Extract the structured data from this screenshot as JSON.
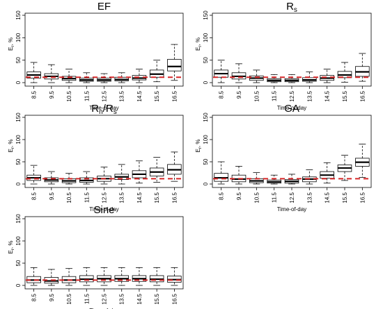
{
  "chart_data": [
    {
      "type": "box",
      "title": "EF",
      "xlabel": "Time-of-day",
      "ylabel": "E_r, %",
      "ylim": [
        0,
        150
      ],
      "yticks": [
        0,
        50,
        100,
        150
      ],
      "categories": [
        "8.5",
        "9.5",
        "10.5",
        "11.5",
        "12.5",
        "13.5",
        "14.5",
        "15.5",
        "16.5"
      ],
      "reference_line": 12,
      "boxes": [
        {
          "min": 0,
          "q1": 10,
          "median": 17,
          "q3": 24,
          "max": 45
        },
        {
          "min": 0,
          "q1": 8,
          "median": 14,
          "q3": 20,
          "max": 40
        },
        {
          "min": 0,
          "q1": 5,
          "median": 9,
          "q3": 14,
          "max": 30
        },
        {
          "min": 0,
          "q1": 3,
          "median": 6,
          "q3": 10,
          "max": 22
        },
        {
          "min": 0,
          "q1": 3,
          "median": 6,
          "q3": 10,
          "max": 20
        },
        {
          "min": 0,
          "q1": 4,
          "median": 7,
          "q3": 12,
          "max": 22
        },
        {
          "min": 0,
          "q1": 6,
          "median": 10,
          "q3": 16,
          "max": 30
        },
        {
          "min": 2,
          "q1": 12,
          "median": 19,
          "q3": 28,
          "max": 50
        },
        {
          "min": 5,
          "q1": 26,
          "median": 36,
          "q3": 52,
          "max": 85
        }
      ]
    },
    {
      "type": "box",
      "title": "R",
      "title_sub": "s",
      "xlabel": "Time-of-day",
      "ylabel": "E_r, %",
      "ylim": [
        0,
        150
      ],
      "yticks": [
        0,
        50,
        100,
        150
      ],
      "categories": [
        "8.5",
        "9.5",
        "10.5",
        "11.5",
        "12.5",
        "13.5",
        "14.5",
        "15.5",
        "16.5"
      ],
      "reference_line": 12,
      "boxes": [
        {
          "min": 0,
          "q1": 12,
          "median": 20,
          "q3": 28,
          "max": 50
        },
        {
          "min": 0,
          "q1": 8,
          "median": 14,
          "q3": 22,
          "max": 42
        },
        {
          "min": 0,
          "q1": 5,
          "median": 10,
          "q3": 15,
          "max": 28
        },
        {
          "min": 0,
          "q1": 2,
          "median": 5,
          "q3": 9,
          "max": 18
        },
        {
          "min": 0,
          "q1": 2,
          "median": 5,
          "q3": 9,
          "max": 18
        },
        {
          "min": 0,
          "q1": 3,
          "median": 6,
          "q3": 11,
          "max": 24
        },
        {
          "min": 0,
          "q1": 5,
          "median": 10,
          "q3": 16,
          "max": 30
        },
        {
          "min": 1,
          "q1": 11,
          "median": 17,
          "q3": 25,
          "max": 45
        },
        {
          "min": 3,
          "q1": 14,
          "median": 24,
          "q3": 36,
          "max": 65
        }
      ]
    },
    {
      "type": "box",
      "title": "R",
      "title_sub": "n",
      "title_rest": "/R",
      "title_sub2": "s",
      "xlabel": "Time-of-day",
      "ylabel": "E_r, %",
      "ylim": [
        0,
        150
      ],
      "yticks": [
        0,
        50,
        100,
        150
      ],
      "categories": [
        "8.5",
        "9.5",
        "10.5",
        "11.5",
        "12.5",
        "13.5",
        "14.5",
        "15.5",
        "16.5"
      ],
      "reference_line": 12,
      "boxes": [
        {
          "min": 0,
          "q1": 8,
          "median": 14,
          "q3": 20,
          "max": 42
        },
        {
          "min": 0,
          "q1": 5,
          "median": 9,
          "q3": 14,
          "max": 28
        },
        {
          "min": 0,
          "q1": 3,
          "median": 7,
          "q3": 12,
          "max": 24
        },
        {
          "min": 0,
          "q1": 4,
          "median": 8,
          "q3": 14,
          "max": 28
        },
        {
          "min": 0,
          "q1": 6,
          "median": 12,
          "q3": 18,
          "max": 38
        },
        {
          "min": 0,
          "q1": 10,
          "median": 16,
          "q3": 22,
          "max": 44
        },
        {
          "min": 2,
          "q1": 14,
          "median": 22,
          "q3": 30,
          "max": 52
        },
        {
          "min": 4,
          "q1": 18,
          "median": 27,
          "q3": 36,
          "max": 60
        },
        {
          "min": 6,
          "q1": 22,
          "median": 32,
          "q3": 44,
          "max": 72
        }
      ]
    },
    {
      "type": "box",
      "title": "GA",
      "xlabel": "Time-of-day",
      "ylabel": "E_r, %",
      "ylim": [
        0,
        150
      ],
      "yticks": [
        0,
        50,
        100,
        150
      ],
      "categories": [
        "8.5",
        "9.5",
        "10.5",
        "11.5",
        "12.5",
        "13.5",
        "14.5",
        "15.5",
        "16.5"
      ],
      "reference_line": 12,
      "boxes": [
        {
          "min": 0,
          "q1": 6,
          "median": 14,
          "q3": 24,
          "max": 50
        },
        {
          "min": 0,
          "q1": 5,
          "median": 11,
          "q3": 20,
          "max": 40
        },
        {
          "min": 0,
          "q1": 3,
          "median": 7,
          "q3": 12,
          "max": 26
        },
        {
          "min": 0,
          "q1": 2,
          "median": 5,
          "q3": 9,
          "max": 20
        },
        {
          "min": 0,
          "q1": 2,
          "median": 6,
          "q3": 10,
          "max": 22
        },
        {
          "min": 0,
          "q1": 5,
          "median": 11,
          "q3": 16,
          "max": 32
        },
        {
          "min": 2,
          "q1": 13,
          "median": 20,
          "q3": 28,
          "max": 48
        },
        {
          "min": 8,
          "q1": 28,
          "median": 36,
          "q3": 43,
          "max": 65
        },
        {
          "min": 15,
          "q1": 40,
          "median": 49,
          "q3": 58,
          "max": 90
        }
      ]
    },
    {
      "type": "box",
      "title": "Sine",
      "xlabel": "Time-of-day",
      "ylabel": "E_r, %",
      "ylim": [
        0,
        150
      ],
      "yticks": [
        0,
        50,
        100,
        150
      ],
      "categories": [
        "8.5",
        "9.5",
        "10.5",
        "11.5",
        "12.5",
        "13.5",
        "14.5",
        "15.5",
        "16.5"
      ],
      "reference_line": 12,
      "boxes": [
        {
          "min": 0,
          "q1": 6,
          "median": 12,
          "q3": 20,
          "max": 40
        },
        {
          "min": 0,
          "q1": 5,
          "median": 10,
          "q3": 18,
          "max": 36
        },
        {
          "min": 0,
          "q1": 6,
          "median": 12,
          "q3": 20,
          "max": 38
        },
        {
          "min": 0,
          "q1": 8,
          "median": 14,
          "q3": 22,
          "max": 40
        },
        {
          "min": 0,
          "q1": 8,
          "median": 15,
          "q3": 22,
          "max": 40
        },
        {
          "min": 0,
          "q1": 9,
          "median": 15,
          "q3": 22,
          "max": 40
        },
        {
          "min": 0,
          "q1": 9,
          "median": 15,
          "q3": 22,
          "max": 40
        },
        {
          "min": 0,
          "q1": 8,
          "median": 14,
          "q3": 22,
          "max": 40
        },
        {
          "min": 0,
          "q1": 7,
          "median": 13,
          "q3": 21,
          "max": 40
        }
      ]
    }
  ],
  "colors": {
    "reference_line": "#d62728",
    "box_stroke": "#000000",
    "box_fill": "#ffffff"
  }
}
